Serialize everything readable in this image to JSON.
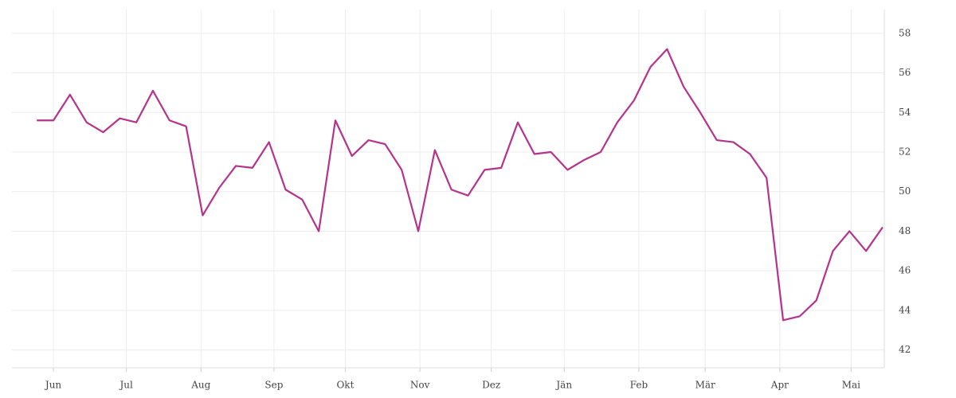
{
  "chart_data": {
    "type": "line",
    "x": [
      0,
      1,
      2,
      3,
      4,
      5,
      6,
      7,
      8,
      9,
      10,
      11,
      12,
      13,
      14,
      15,
      16,
      17,
      18,
      19,
      20,
      21,
      22,
      23,
      24,
      25,
      26,
      27,
      28,
      29,
      30,
      31,
      32,
      33,
      34,
      35,
      36,
      37,
      38,
      39,
      40,
      41,
      42,
      43,
      44,
      45,
      46,
      47,
      48,
      49,
      50,
      51
    ],
    "series": [
      {
        "color": "#b5338a",
        "values": [
          53.6,
          53.6,
          54.9,
          53.5,
          53.0,
          53.7,
          53.5,
          55.1,
          53.6,
          53.3,
          48.8,
          50.2,
          51.3,
          51.2,
          52.5,
          50.1,
          49.6,
          48.0,
          53.6,
          51.8,
          52.6,
          52.4,
          51.1,
          48.0,
          52.1,
          50.1,
          49.8,
          51.1,
          51.2,
          53.5,
          51.9,
          52.0,
          51.1,
          51.6,
          52.0,
          53.5,
          54.6,
          56.3,
          57.2,
          55.3,
          54.0,
          52.6,
          52.5,
          51.9,
          50.7,
          43.5,
          43.7,
          44.5,
          47.0,
          48.0,
          47.0,
          48.2
        ]
      }
    ],
    "xlim": [
      -1.5,
      51.1
    ],
    "xticks": [
      {
        "value": 1.0,
        "label": "Jun"
      },
      {
        "value": 5.4,
        "label": "Jul"
      },
      {
        "value": 9.9,
        "label": "Aug"
      },
      {
        "value": 14.3,
        "label": "Sep"
      },
      {
        "value": 18.6,
        "label": "Okt"
      },
      {
        "value": 23.1,
        "label": "Nov"
      },
      {
        "value": 27.4,
        "label": "Dez"
      },
      {
        "value": 31.8,
        "label": "Jän"
      },
      {
        "value": 36.3,
        "label": "Feb"
      },
      {
        "value": 40.3,
        "label": "Mär"
      },
      {
        "value": 44.8,
        "label": "Apr"
      },
      {
        "value": 49.1,
        "label": "Mai"
      }
    ],
    "ylim": [
      41.1,
      59.2
    ],
    "yticks": [
      42,
      44,
      46,
      48,
      50,
      52,
      54,
      56,
      58
    ],
    "grid": true
  }
}
